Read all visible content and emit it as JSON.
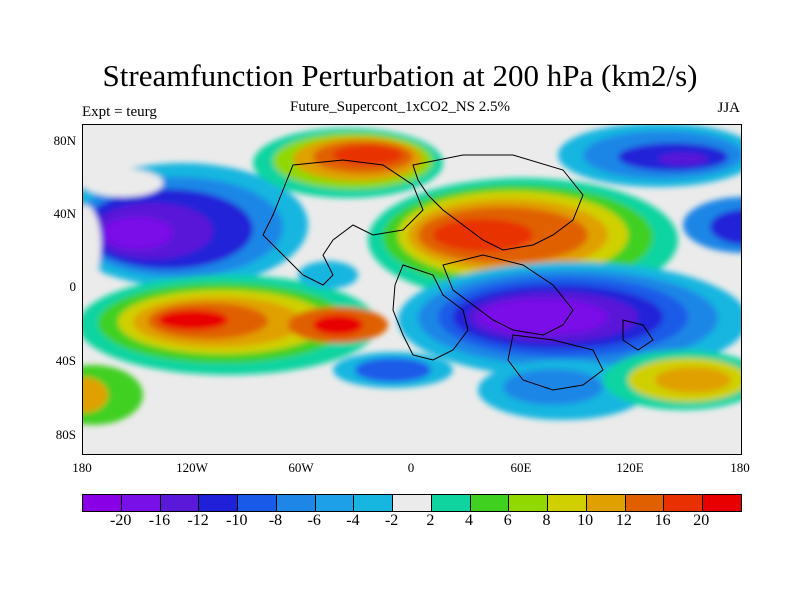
{
  "title": "Streamfunction Perturbation at 200 hPa (km2/s)",
  "subtitle_left": "Expt = teurg",
  "subtitle_center": "Future_Supercont_1xCO2_NS 2.5%",
  "subtitle_right": "JJA",
  "lat_labels": [
    "80N",
    "40N",
    "0",
    "40S",
    "80S"
  ],
  "lon_labels": [
    "180",
    "120W",
    "60W",
    "0",
    "60E",
    "120E",
    "180"
  ],
  "colorbar": {
    "colors": [
      "#8a00e6",
      "#7a10e8",
      "#5a18d8",
      "#2020d8",
      "#1a5ae8",
      "#1e86e6",
      "#1ea0e8",
      "#16b6e0",
      "#ebebeb",
      "#10d4a0",
      "#40d020",
      "#90d800",
      "#d0d000",
      "#e0a000",
      "#e06000",
      "#e83000",
      "#e80000"
    ],
    "labels": [
      "-20",
      "-16",
      "-12",
      "-10",
      "-8",
      "-6",
      "-4",
      "-2",
      "2",
      "4",
      "6",
      "8",
      "10",
      "12",
      "16",
      "20"
    ]
  }
}
